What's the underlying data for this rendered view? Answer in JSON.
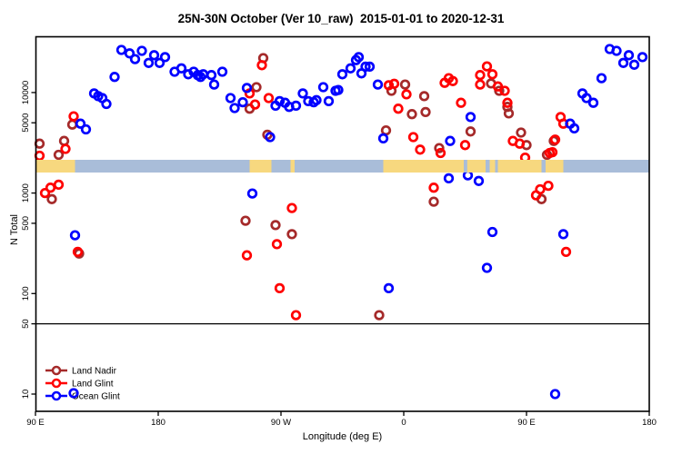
{
  "chart_data": {
    "type": "scatter",
    "title": "25N-30N October (Ver 10_raw)  2015-01-01 to 2020-12-31",
    "xlabel": "Longitude (deg E)",
    "ylabel": "N Total",
    "x_axis": {
      "lim": [
        90,
        540
      ],
      "wraps": "longitude axis runs 90E through 180, 90W, 0, back to 90E and 180",
      "ticks": [
        {
          "value": 90,
          "label": "90 E"
        },
        {
          "value": 180,
          "label": "180"
        },
        {
          "value": 270,
          "label": "90 W"
        },
        {
          "value": 360,
          "label": "0"
        },
        {
          "value": 450,
          "label": "90 E"
        },
        {
          "value": 540,
          "label": "180"
        }
      ]
    },
    "y_axis": {
      "scale": "log",
      "lim": [
        9.5,
        36000
      ],
      "ticks": [
        {
          "value": 10,
          "label": "10"
        },
        {
          "value": 50,
          "label": "50"
        },
        {
          "value": 100,
          "label": "100"
        },
        {
          "value": 500,
          "label": "500"
        },
        {
          "value": 1000,
          "label": "1000"
        },
        {
          "value": 5000,
          "label": "5000"
        },
        {
          "value": 10000,
          "label": "10000"
        }
      ]
    },
    "reference_line": {
      "y": 50,
      "color": "#000000"
    },
    "map_strip": {
      "n_top": 2140,
      "n_bottom": 1600,
      "land_color": "#F7D87F",
      "ocean_color": "#A9BDD9",
      "segments": [
        {
          "type": "land",
          "from": 90,
          "to": 119
        },
        {
          "type": "ocean",
          "from": 119,
          "to": 247
        },
        {
          "type": "land",
          "from": 247,
          "to": 263
        },
        {
          "type": "ocean",
          "from": 263,
          "to": 277
        },
        {
          "type": "land",
          "from": 277,
          "to": 280
        },
        {
          "type": "ocean",
          "from": 280,
          "to": 345
        },
        {
          "type": "land",
          "from": 345,
          "to": 477
        },
        {
          "type": "ocean",
          "from": 404,
          "to": 406.5
        },
        {
          "type": "ocean",
          "from": 420,
          "to": 423
        },
        {
          "type": "ocean",
          "from": 427,
          "to": 429
        },
        {
          "type": "ocean",
          "from": 461,
          "to": 464
        },
        {
          "type": "ocean",
          "from": 477,
          "to": 540
        }
      ]
    },
    "legend": {
      "position": "bottom-left"
    },
    "series": [
      {
        "name": "Land Nadir",
        "color": "#A52A2A",
        "points": [
          [
            93,
            3100
          ],
          [
            111,
            3300
          ],
          [
            107,
            2400
          ],
          [
            117,
            4800
          ],
          [
            257,
            22000
          ],
          [
            252,
            11300
          ],
          [
            247,
            6900
          ],
          [
            260,
            3800
          ],
          [
            351,
            10400
          ],
          [
            361,
            12000
          ],
          [
            375,
            9200
          ],
          [
            366,
            6100
          ],
          [
            376,
            6400
          ],
          [
            347,
            4200
          ],
          [
            386,
            2800
          ],
          [
            409,
            4100
          ],
          [
            424,
            12300
          ],
          [
            430,
            10400
          ],
          [
            436,
            7200
          ],
          [
            437,
            6200
          ],
          [
            446,
            4000
          ],
          [
            450,
            3000
          ],
          [
            470,
            3300
          ],
          [
            465,
            2400
          ],
          [
            102,
            870
          ],
          [
            244,
            530
          ],
          [
            266,
            480
          ],
          [
            278,
            390
          ],
          [
            122,
            250
          ],
          [
            382,
            820
          ],
          [
            461,
            870
          ],
          [
            342,
            61
          ]
        ]
      },
      {
        "name": "Land Glint",
        "color": "#FF0000",
        "points": [
          [
            93,
            2350
          ],
          [
            112,
            2750
          ],
          [
            118,
            5800
          ],
          [
            256,
            18700
          ],
          [
            247,
            9800
          ],
          [
            251,
            7600
          ],
          [
            261,
            8800
          ],
          [
            349,
            11800
          ],
          [
            353,
            12200
          ],
          [
            362,
            9600
          ],
          [
            356,
            6900
          ],
          [
            367,
            3600
          ],
          [
            372,
            2700
          ],
          [
            387,
            2500
          ],
          [
            390,
            12500
          ],
          [
            393,
            13900
          ],
          [
            396,
            13000
          ],
          [
            402,
            7900
          ],
          [
            405,
            3000
          ],
          [
            416,
            14900
          ],
          [
            416,
            12000
          ],
          [
            421,
            18200
          ],
          [
            425,
            15200
          ],
          [
            429,
            11500
          ],
          [
            434,
            10400
          ],
          [
            436,
            7900
          ],
          [
            440,
            3300
          ],
          [
            445,
            3100
          ],
          [
            449,
            2250
          ],
          [
            475,
            5700
          ],
          [
            477,
            4900
          ],
          [
            471,
            3400
          ],
          [
            469,
            2550
          ],
          [
            467,
            2500
          ],
          [
            107,
            1210
          ],
          [
            101,
            1130
          ],
          [
            97,
            1000
          ],
          [
            121,
            260
          ],
          [
            278,
            710
          ],
          [
            267,
            310
          ],
          [
            245,
            240
          ],
          [
            269,
            113
          ],
          [
            281,
            61
          ],
          [
            382,
            1130
          ],
          [
            457,
            950
          ],
          [
            460,
            1090
          ],
          [
            466,
            1180
          ],
          [
            479,
            260
          ]
        ]
      },
      {
        "name": "Ocean Glint",
        "color": "#0000FF",
        "points": [
          [
            153,
            26500
          ],
          [
            159,
            24500
          ],
          [
            163,
            21500
          ],
          [
            168,
            26000
          ],
          [
            173,
            19700
          ],
          [
            177,
            23500
          ],
          [
            181,
            19700
          ],
          [
            185,
            22500
          ],
          [
            192,
            16100
          ],
          [
            197,
            17400
          ],
          [
            202,
            15200
          ],
          [
            206,
            16100
          ],
          [
            209,
            14900
          ],
          [
            148,
            14300
          ],
          [
            133,
            9800
          ],
          [
            136,
            9200
          ],
          [
            139,
            8800
          ],
          [
            142,
            7700
          ],
          [
            123,
            4900
          ],
          [
            127,
            4300
          ],
          [
            213,
            15200
          ],
          [
            211,
            14300
          ],
          [
            219,
            14900
          ],
          [
            221,
            12000
          ],
          [
            227,
            16100
          ],
          [
            233,
            8800
          ],
          [
            236,
            7000
          ],
          [
            242,
            8000
          ],
          [
            245,
            11100
          ],
          [
            266,
            7400
          ],
          [
            269,
            8200
          ],
          [
            273,
            7900
          ],
          [
            276,
            7200
          ],
          [
            281,
            7400
          ],
          [
            286,
            9800
          ],
          [
            290,
            8200
          ],
          [
            294,
            8000
          ],
          [
            296,
            8400
          ],
          [
            301,
            11300
          ],
          [
            305,
            8200
          ],
          [
            310,
            10400
          ],
          [
            312,
            10600
          ],
          [
            315,
            15200
          ],
          [
            321,
            17400
          ],
          [
            325,
            21000
          ],
          [
            329,
            15500
          ],
          [
            327,
            22500
          ],
          [
            332,
            18100
          ],
          [
            335,
            18100
          ],
          [
            341,
            12000
          ],
          [
            262,
            3600
          ],
          [
            345,
            3500
          ],
          [
            394,
            3300
          ],
          [
            409,
            5700
          ],
          [
            505,
            13900
          ],
          [
            491,
            9800
          ],
          [
            494,
            8800
          ],
          [
            499,
            7900
          ],
          [
            482,
            4900
          ],
          [
            485,
            4400
          ],
          [
            511,
            27100
          ],
          [
            516,
            26000
          ],
          [
            521,
            19700
          ],
          [
            525,
            23500
          ],
          [
            529,
            18900
          ],
          [
            535,
            22500
          ],
          [
            393,
            1400
          ],
          [
            407,
            1500
          ],
          [
            415,
            1320
          ],
          [
            425,
            410
          ],
          [
            477,
            390
          ],
          [
            421,
            180
          ],
          [
            349,
            113
          ],
          [
            119,
            380
          ],
          [
            249,
            990
          ],
          [
            471,
            10
          ],
          [
            118,
            10.2
          ]
        ]
      }
    ]
  }
}
